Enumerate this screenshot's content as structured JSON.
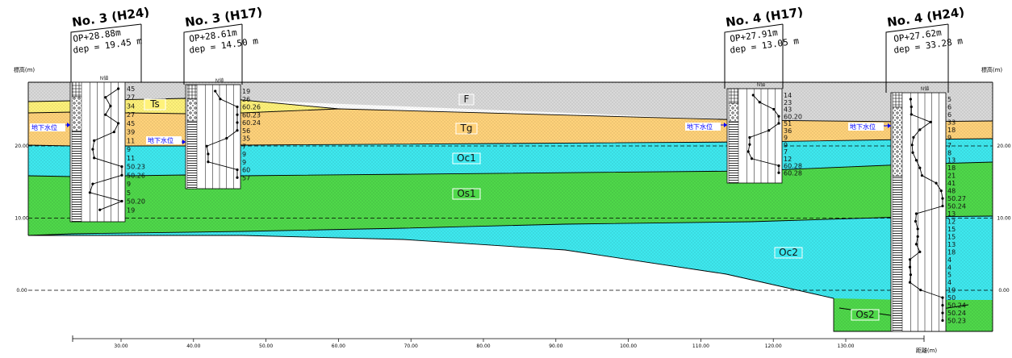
{
  "axes": {
    "left_label": "標高(m)",
    "right_label": "標高(m)",
    "bottom_label": "距離(m)",
    "elevation_ticks": [
      {
        "value": 20,
        "label": "20.00"
      },
      {
        "value": 10,
        "label": "10.00"
      },
      {
        "value": 0,
        "label": "0.00"
      }
    ],
    "distance_ticks": [
      {
        "value": 30,
        "label": "30.00"
      },
      {
        "value": 40,
        "label": "40.00"
      },
      {
        "value": 50,
        "label": "50.00"
      },
      {
        "value": 60,
        "label": "60.00"
      },
      {
        "value": 70,
        "label": "70.00"
      },
      {
        "value": 80,
        "label": "80.00"
      },
      {
        "value": 90,
        "label": "90.00"
      },
      {
        "value": 100,
        "label": "100.00"
      },
      {
        "value": 110,
        "label": "110.00"
      },
      {
        "value": 120,
        "label": "120.00"
      },
      {
        "value": 130,
        "label": "130.00"
      }
    ]
  },
  "layers": [
    {
      "id": "F",
      "label": "F",
      "color": "#d9d9d9"
    },
    {
      "id": "Ts",
      "label": "Ts",
      "color": "#fff27a"
    },
    {
      "id": "Tg",
      "label": "Tg",
      "color": "#ffd27a"
    },
    {
      "id": "Oc1",
      "label": "Oc1",
      "color": "#3ee8ee"
    },
    {
      "id": "Os1",
      "label": "Os1",
      "color": "#4fd84a"
    },
    {
      "id": "Oc2",
      "label": "Oc2",
      "color": "#3ee8ee"
    },
    {
      "id": "Os2",
      "label": "Os2",
      "color": "#4fd84a"
    }
  ],
  "water_level_label": "地下水位",
  "n_value_header": "N値",
  "boreholes": [
    {
      "id": "no3-h24",
      "name": "No. 3 (H24)",
      "op": "OP+28.88m",
      "dep": "dep = 19.45 m",
      "distance": 24.5,
      "n_values": [
        "45",
        "27",
        "34",
        "27",
        "45",
        "39",
        "11",
        "9",
        "11",
        "50.23",
        "50.26",
        "9",
        "5",
        "50.20",
        "19"
      ]
    },
    {
      "id": "no3-h17",
      "name": "No. 3 (H17)",
      "op": "OP+28.61m",
      "dep": "dep = 14.50 m",
      "distance": 42.0,
      "n_values": [
        "19",
        "26",
        "60.26",
        "60.23",
        "60.24",
        "56",
        "35",
        "7",
        "9",
        "9",
        "60",
        "57"
      ]
    },
    {
      "id": "no4-h17",
      "name": "No. 4 (H17)",
      "op": "OP+27.91m",
      "dep": "dep = 13.05 m",
      "distance": 117.5,
      "n_values": [
        "14",
        "23",
        "43",
        "60.20",
        "51",
        "36",
        "9",
        "9",
        "7",
        "12",
        "60.28",
        "60.28"
      ]
    },
    {
      "id": "no4-h24",
      "name": "No. 4 (H24)",
      "op": "OP+27.62m",
      "dep": "dep = 33.28 m",
      "distance": 138.5,
      "n_values": [
        "5",
        "6",
        "6",
        "33",
        "18",
        "9",
        "7",
        "8",
        "13",
        "18",
        "21",
        "41",
        "48",
        "50.27",
        "50.24",
        "13",
        "12",
        "15",
        "15",
        "13",
        "18",
        "4",
        "4",
        "5",
        "4",
        "19",
        "50",
        "50.24",
        "50.24",
        "50.23"
      ]
    }
  ]
}
